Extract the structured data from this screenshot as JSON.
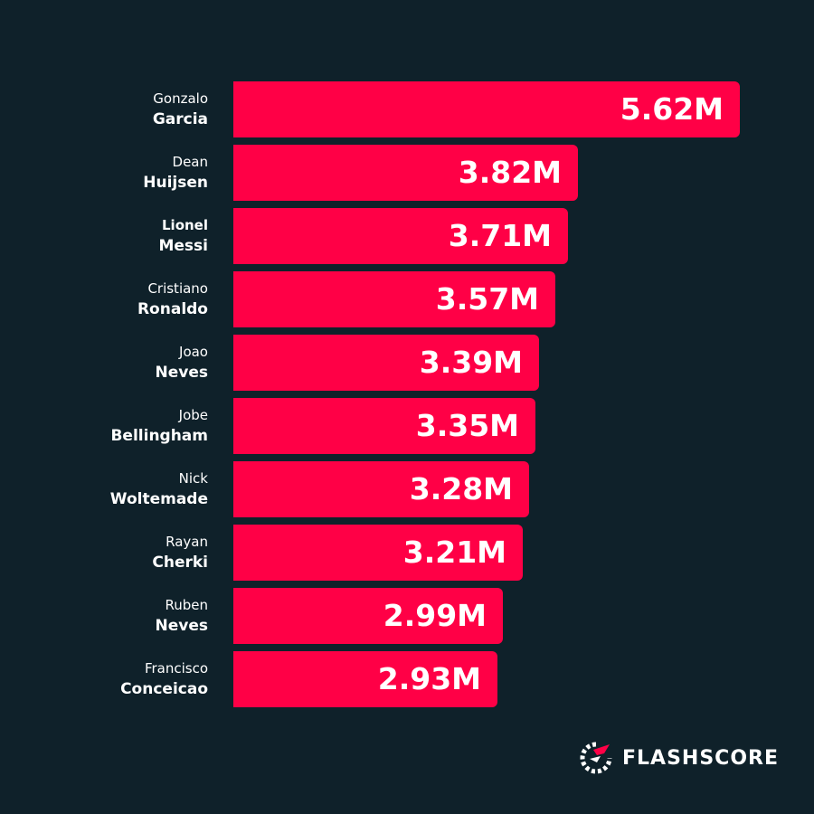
{
  "brand": {
    "logo_text": "FLASHSCORE",
    "logo_icon": "flashscore-logo-icon",
    "accent_color": "#ff0046",
    "background_color": "#0f212a"
  },
  "chart_data": {
    "type": "bar",
    "orientation": "horizontal",
    "categories": [
      {
        "first": "Gonzalo",
        "last": "Garcia"
      },
      {
        "first": "Dean",
        "last": "Huijsen"
      },
      {
        "first": "Lionel",
        "last": "Messi"
      },
      {
        "first": "Cristiano",
        "last": "Ronaldo"
      },
      {
        "first": "Joao",
        "last": "Neves"
      },
      {
        "first": "Jobe",
        "last": "Bellingham"
      },
      {
        "first": "Nick",
        "last": "Woltemade"
      },
      {
        "first": "Rayan",
        "last": "Cherki"
      },
      {
        "first": "Ruben",
        "last": "Neves"
      },
      {
        "first": "Francisco",
        "last": "Conceicao"
      }
    ],
    "values": [
      5.62,
      3.82,
      3.71,
      3.57,
      3.39,
      3.35,
      3.28,
      3.21,
      2.99,
      2.93
    ],
    "value_labels": [
      "5.62M",
      "3.82M",
      "3.71M",
      "3.57M",
      "3.39M",
      "3.35M",
      "3.28M",
      "3.21M",
      "2.99M",
      "2.93M"
    ],
    "bar_color": "#ff0046",
    "grid": false
  }
}
